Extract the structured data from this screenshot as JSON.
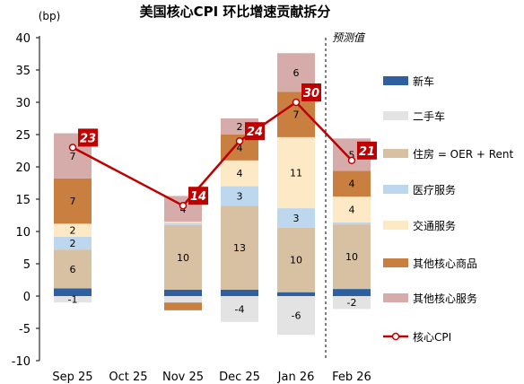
{
  "chart_data": {
    "type": "bar",
    "title": "美国核心CPI 环比增速贡献拆分",
    "unit_label": "(bp)",
    "forecast_label": "预测值",
    "categories": [
      "Sep 25",
      "Oct 25",
      "Nov 25",
      "Dec 25",
      "Jan 26",
      "Feb 26"
    ],
    "ylim": [
      -10,
      40
    ],
    "yticks": [
      "-10",
      "-5",
      "0",
      "5",
      "10",
      "15",
      "20",
      "25",
      "30",
      "35",
      "40"
    ],
    "series": [
      {
        "name": "新车",
        "color": "#2e5f9e",
        "values": [
          1.2,
          null,
          1.0,
          1.0,
          0.6,
          1.1
        ],
        "labels": [
          "",
          "",
          "",
          "",
          "",
          ""
        ]
      },
      {
        "name": "二手车",
        "color": "#e3e3e3",
        "values": [
          -1,
          null,
          -1.0,
          -4,
          -6,
          -2
        ],
        "labels": [
          "-1",
          "",
          "",
          "-4",
          "-6",
          "-2"
        ]
      },
      {
        "name": "住房 = OER + Rent",
        "color": "#d8c0a3",
        "values": [
          6,
          null,
          10,
          13,
          10,
          10
        ],
        "labels": [
          "6",
          "",
          "10",
          "13",
          "10",
          "10"
        ]
      },
      {
        "name": "医疗服务",
        "color": "#bdd7ee",
        "values": [
          2,
          null,
          0.3,
          3,
          3,
          0.3
        ],
        "labels": [
          "2",
          "",
          "",
          "3",
          "3",
          ""
        ]
      },
      {
        "name": "交通服务",
        "color": "#fde9c5",
        "values": [
          2,
          null,
          0.2,
          4,
          11,
          4
        ],
        "labels": [
          "2",
          "",
          "",
          "4",
          "11",
          "4"
        ]
      },
      {
        "name": "其他核心商品",
        "color": "#c87f40",
        "values": [
          7,
          null,
          -1.2,
          4,
          7,
          4
        ],
        "labels": [
          "7",
          "",
          "",
          "4",
          "7",
          "4"
        ]
      },
      {
        "name": "其他核心服务",
        "color": "#d6acaa",
        "values": [
          7,
          null,
          4,
          2.5,
          6,
          5
        ],
        "labels": [
          "7",
          "",
          "4",
          "2",
          "6",
          "5"
        ]
      }
    ],
    "line": {
      "name": "核心CPI",
      "color": "#c00000",
      "values": [
        23,
        null,
        14,
        24,
        30,
        21
      ],
      "labels": [
        "23",
        "",
        "14",
        "24",
        "30",
        "21"
      ]
    },
    "grid": false,
    "legend_position": "right"
  }
}
